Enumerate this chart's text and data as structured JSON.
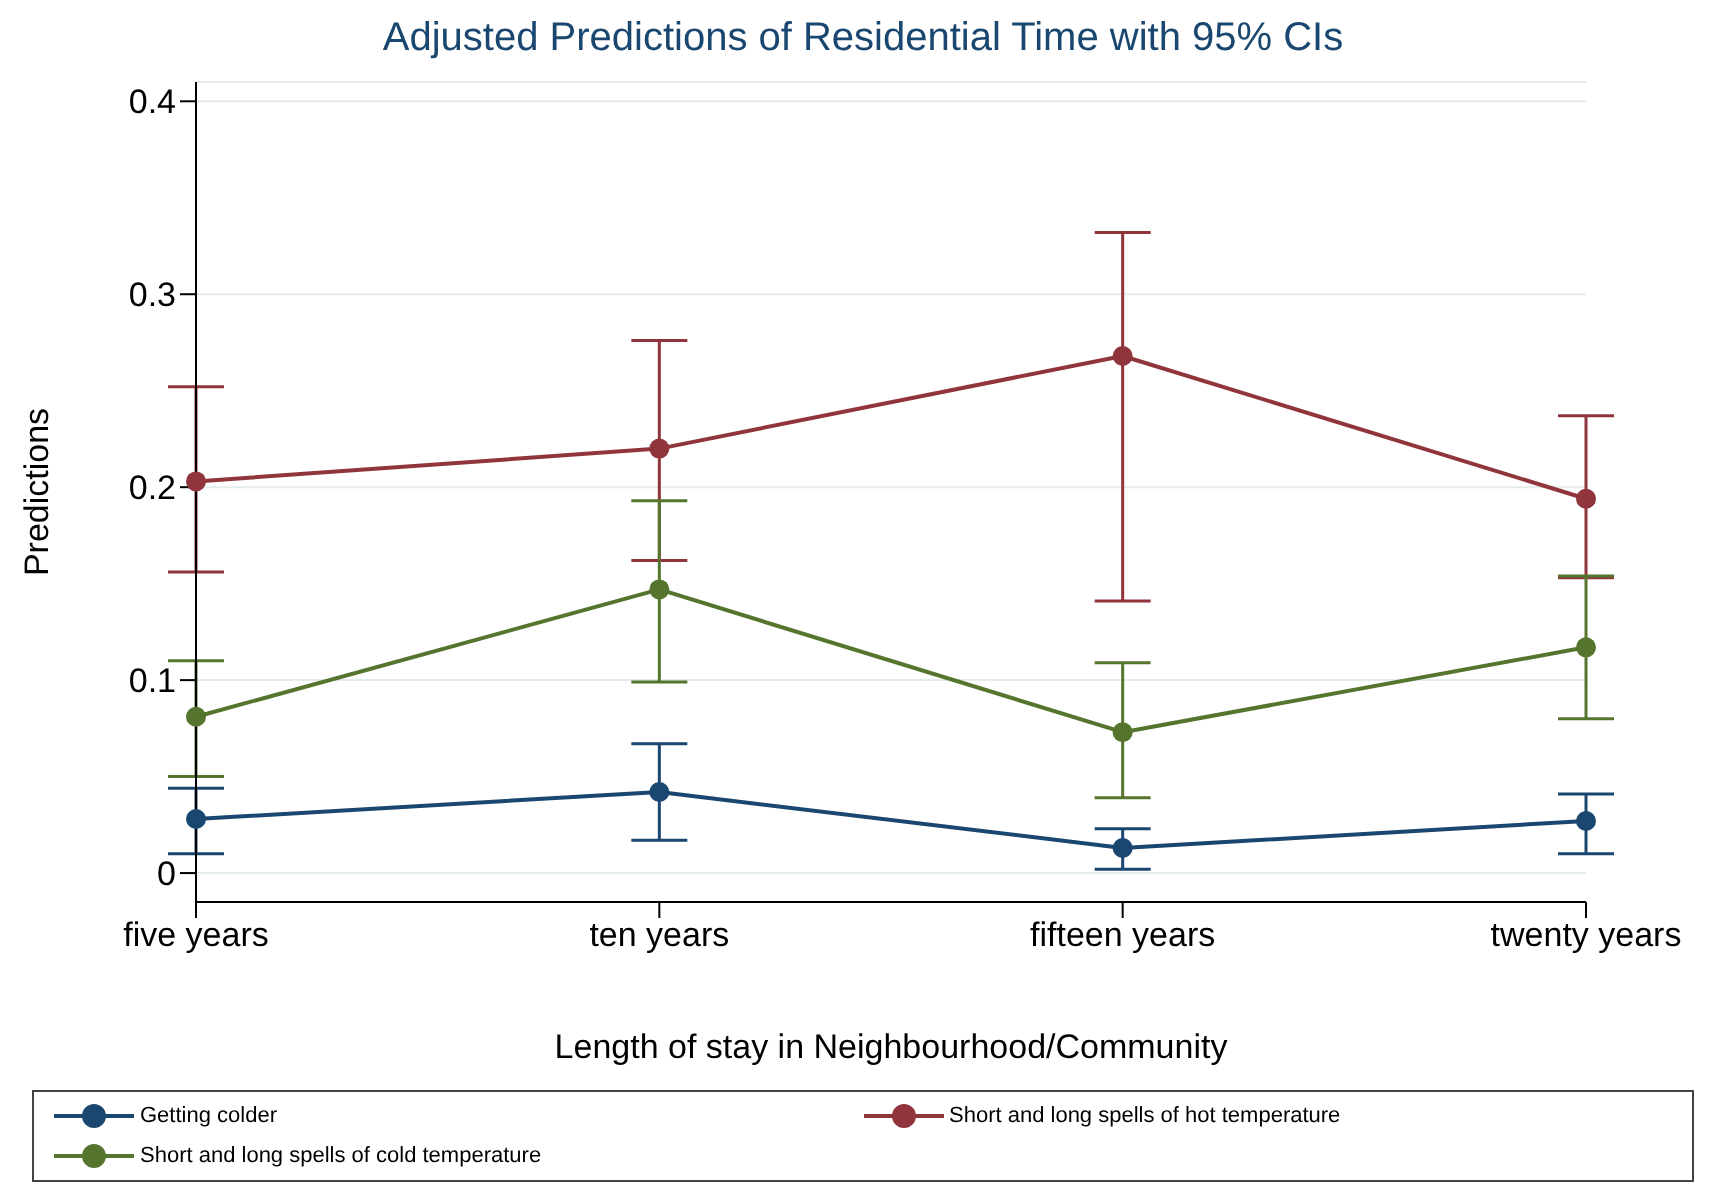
{
  "chart_data": {
    "type": "line",
    "title": "Adjusted Predictions of Residential Time with 95% CIs",
    "xlabel": "Length of stay in Neighbourhood/Community",
    "ylabel": "Predictions",
    "categories": [
      "five years",
      "ten years",
      "fifteen years",
      "twenty years"
    ],
    "ylim": [
      -0.015,
      0.41
    ],
    "yticks": [
      0,
      0.1,
      0.2,
      0.3,
      0.4
    ],
    "grid": "y",
    "legend": "bottom",
    "marker": "circle",
    "line_style": "solid",
    "series": [
      {
        "name": "Getting colder",
        "color": "#1a476f",
        "values": [
          0.028,
          0.042,
          0.013,
          0.027
        ],
        "errors": [
          [
            0.01,
            0.044
          ],
          [
            0.017,
            0.067
          ],
          [
            0.002,
            0.023
          ],
          [
            0.01,
            0.041
          ]
        ]
      },
      {
        "name": "Short and long spells of hot temperature",
        "color": "#90353b",
        "values": [
          0.203,
          0.22,
          0.268,
          0.194
        ],
        "errors": [
          [
            0.156,
            0.252
          ],
          [
            0.162,
            0.276
          ],
          [
            0.141,
            0.332
          ],
          [
            0.153,
            0.237
          ]
        ]
      },
      {
        "name": "Short and long spells of cold temperature",
        "color": "#55752f",
        "values": [
          0.081,
          0.147,
          0.073,
          0.117
        ],
        "errors": [
          [
            0.05,
            0.11
          ],
          [
            0.099,
            0.193
          ],
          [
            0.039,
            0.109
          ],
          [
            0.08,
            0.154
          ]
        ]
      }
    ]
  }
}
